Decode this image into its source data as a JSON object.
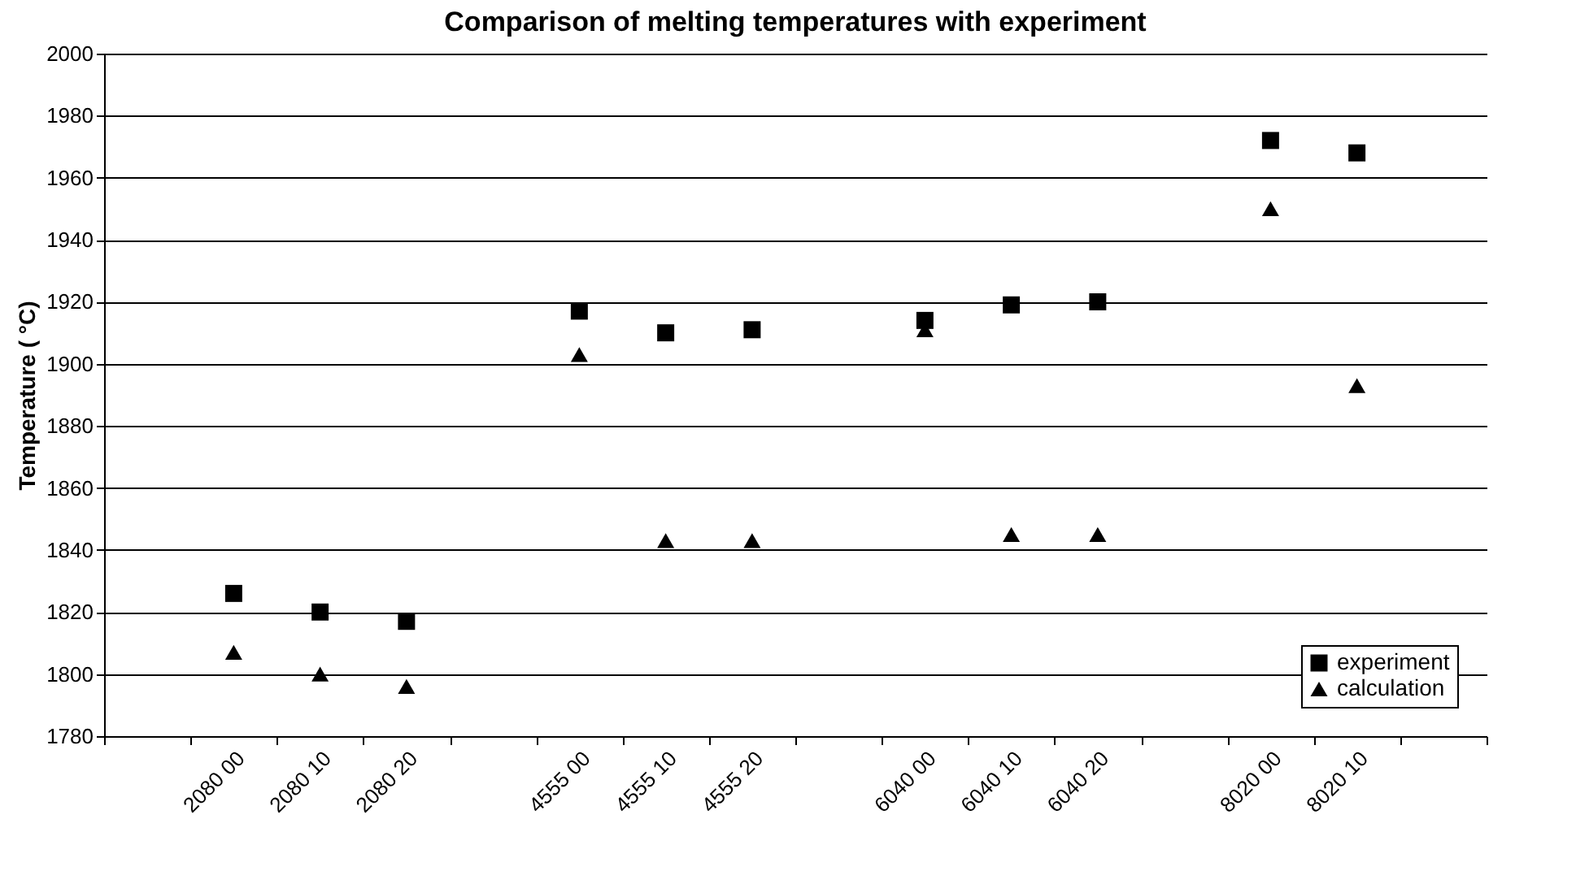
{
  "chart_data": {
    "type": "scatter",
    "title": "Comparison of melting temperatures with experiment",
    "ylabel": "Temperature ( °C)",
    "categories": [
      null,
      "2080 00",
      "2080 10",
      "2080 20",
      null,
      "4555 00",
      "4555 10",
      "4555 20",
      null,
      "6040 00",
      "6040 10",
      "6040 20",
      null,
      "8020 00",
      "8020 10",
      null
    ],
    "series": [
      {
        "name": "experiment",
        "color": "#000000",
        "marker": "square",
        "values": [
          null,
          1826,
          1820,
          1817,
          null,
          1917,
          1910,
          1911,
          null,
          1914,
          1919,
          1920,
          null,
          1972,
          1968,
          null
        ]
      },
      {
        "name": "calculation",
        "color": "#000000",
        "marker": "triangle",
        "values": [
          null,
          1807,
          1800,
          1796,
          null,
          1903,
          1843,
          1843,
          null,
          1911,
          1845,
          1845,
          null,
          1950,
          1893,
          null
        ]
      }
    ],
    "ylim": [
      1780,
      2000
    ],
    "yticks": [
      1780,
      1800,
      1820,
      1840,
      1860,
      1880,
      1900,
      1920,
      1940,
      1960,
      1980,
      2000
    ],
    "grid": "y",
    "legend": "bottom right"
  }
}
